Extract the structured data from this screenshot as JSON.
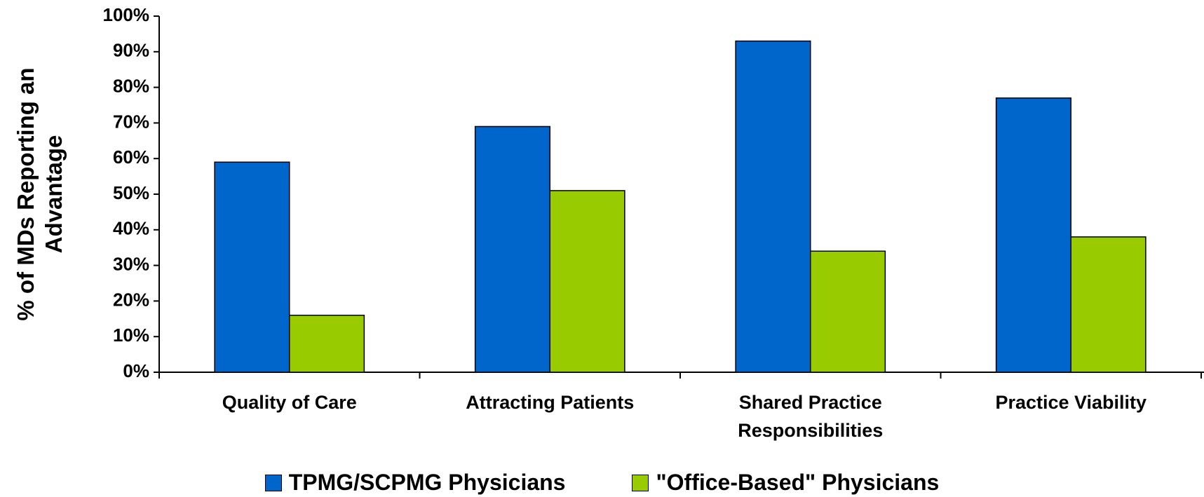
{
  "chart_data": {
    "type": "bar",
    "y_label": "% of MDs Reporting an Advantage",
    "categories": [
      "Quality of Care",
      "Attracting Patients",
      "Shared Practice Responsibilities",
      "Practice Viability"
    ],
    "series": [
      {
        "name": "TPMG/SCPMG Physicians",
        "color": "#0066cc",
        "values": [
          59,
          69,
          93,
          77
        ]
      },
      {
        "name": "\"Office-Based\" Physicians",
        "color": "#99cc00",
        "values": [
          16,
          51,
          34,
          38
        ]
      }
    ],
    "ylim": [
      0,
      100
    ],
    "yticks": [
      {
        "value": 0,
        "label": "0%"
      },
      {
        "value": 10,
        "label": "10%"
      },
      {
        "value": 20,
        "label": "20%"
      },
      {
        "value": 30,
        "label": "30%"
      },
      {
        "value": 40,
        "label": "40%"
      },
      {
        "value": 50,
        "label": "50%"
      },
      {
        "value": 60,
        "label": "60%"
      },
      {
        "value": 70,
        "label": "70%"
      },
      {
        "value": 80,
        "label": "80%"
      },
      {
        "value": 90,
        "label": "90%"
      },
      {
        "value": 100,
        "label": "100%"
      }
    ],
    "grid": false,
    "legend": "bottom"
  }
}
